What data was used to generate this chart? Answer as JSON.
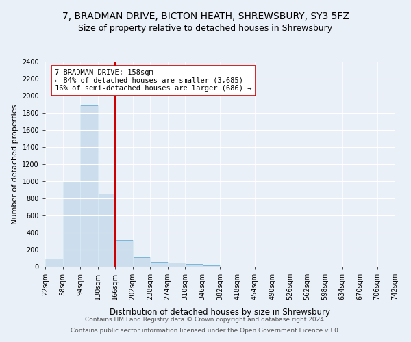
{
  "title1": "7, BRADMAN DRIVE, BICTON HEATH, SHREWSBURY, SY3 5FZ",
  "title2": "Size of property relative to detached houses in Shrewsbury",
  "xlabel": "Distribution of detached houses by size in Shrewsbury",
  "ylabel": "Number of detached properties",
  "bar_values": [
    95,
    1010,
    1890,
    860,
    315,
    115,
    55,
    50,
    30,
    20,
    0,
    0,
    0,
    0,
    0,
    0,
    0,
    0,
    0,
    0
  ],
  "categories": [
    "22sqm",
    "58sqm",
    "94sqm",
    "130sqm",
    "166sqm",
    "202sqm",
    "238sqm",
    "274sqm",
    "310sqm",
    "346sqm",
    "382sqm",
    "418sqm",
    "454sqm",
    "490sqm",
    "526sqm",
    "562sqm",
    "598sqm",
    "634sqm",
    "670sqm",
    "706sqm",
    "742sqm"
  ],
  "bar_color": "#ccdded",
  "bar_edge_color": "#6aaed6",
  "vline_color": "#cc0000",
  "annotation_text": "7 BRADMAN DRIVE: 158sqm\n← 84% of detached houses are smaller (3,685)\n16% of semi-detached houses are larger (686) →",
  "annotation_box_color": "#ffffff",
  "annotation_box_edge": "#cc0000",
  "ylim": [
    0,
    2400
  ],
  "yticks": [
    0,
    200,
    400,
    600,
    800,
    1000,
    1200,
    1400,
    1600,
    1800,
    2000,
    2200,
    2400
  ],
  "footer1": "Contains HM Land Registry data © Crown copyright and database right 2024.",
  "footer2": "Contains public sector information licensed under the Open Government Licence v3.0.",
  "bg_color": "#eaf0f8",
  "plot_bg_color": "#eaf0f8",
  "title1_fontsize": 10,
  "title2_fontsize": 9,
  "xlabel_fontsize": 8.5,
  "ylabel_fontsize": 8,
  "footer_fontsize": 6.5,
  "annotation_fontsize": 7.5,
  "tick_fontsize": 7
}
